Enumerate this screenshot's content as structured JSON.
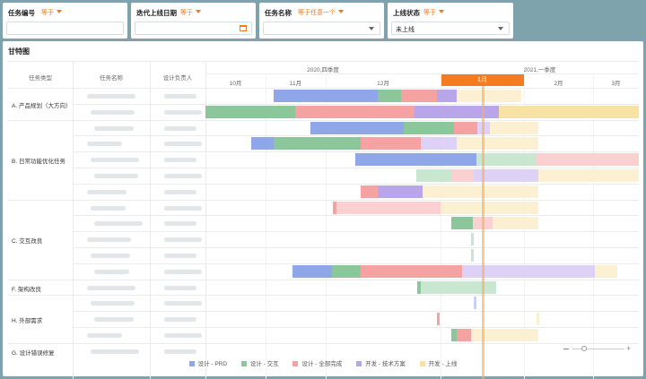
{
  "filters": [
    {
      "label": "任务编号",
      "operator": "等于",
      "value": "",
      "control": "text"
    },
    {
      "label": "迭代上线日期",
      "operator": "等于",
      "value": "",
      "control": "date"
    },
    {
      "label": "任务名称",
      "operator": "等于任意一个",
      "value": "",
      "control": "select"
    },
    {
      "label": "上线状态",
      "operator": "等于",
      "value": "未上线",
      "control": "select"
    }
  ],
  "panel": {
    "title": "甘特图"
  },
  "columns": {
    "type": "任务类型",
    "name": "任务名称",
    "owner": "设计负责人"
  },
  "timeline": {
    "quarters": [
      "2020,四季度",
      "2021,一季度"
    ],
    "months": [
      "10月",
      "11月",
      "12月",
      "1月",
      "2月",
      "3月"
    ],
    "current_month": "1月"
  },
  "groups": [
    {
      "label": "A. 产品规划（大方向）"
    },
    {
      "label": "B. 日常功能优化任务"
    },
    {
      "label": "C. 交互改良"
    },
    {
      "label": "F. 架构改良"
    },
    {
      "label": "H. 外部需求"
    },
    {
      "label": "G. 设计错误修复"
    }
  ],
  "legend": [
    {
      "label": "设计 - PRD",
      "color": "#8fa6e8"
    },
    {
      "label": "设计 - 交互",
      "color": "#8bc79b"
    },
    {
      "label": "设计 - 全部完成",
      "color": "#f5a2a2"
    },
    {
      "label": "开发 - 技术方案",
      "color": "#b9a6ea"
    },
    {
      "label": "开发 - 上线",
      "color": "#f7e2a4"
    }
  ]
}
